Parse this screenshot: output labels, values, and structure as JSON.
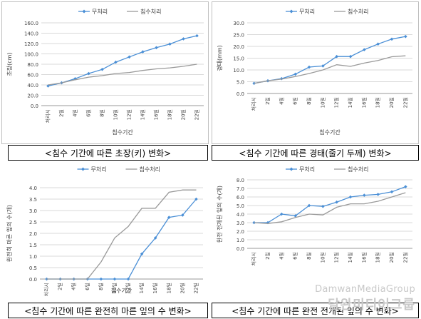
{
  "chart_data": [
    {
      "type": "line",
      "title": "",
      "xlabel": "침수기간",
      "ylabel": "초장(cm)",
      "categories": [
        "처리시",
        "2일",
        "4일",
        "6일",
        "8일",
        "10일",
        "12일",
        "14일",
        "16일",
        "18일",
        "20일",
        "22일"
      ],
      "ylim": [
        0,
        160
      ],
      "yticks": [
        "0.0",
        "20.0",
        "40.0",
        "60.0",
        "80.0",
        "100.0",
        "120.0",
        "140.0",
        "160.0"
      ],
      "grid": true,
      "legend": "top-center",
      "series": [
        {
          "name": "무처리",
          "color": "#4a8fd6",
          "marker": "diamond",
          "values": [
            38,
            44,
            52,
            62,
            70,
            84,
            94,
            104,
            112,
            119,
            129,
            135
          ]
        },
        {
          "name": "침수처리",
          "color": "#9a9a9a",
          "marker": "none",
          "values": [
            40,
            44,
            50,
            55,
            58,
            62,
            64,
            68,
            71,
            73,
            76,
            80
          ]
        }
      ],
      "caption": "<침수 기간에 따른 초장(키) 변화>"
    },
    {
      "type": "line",
      "title": "",
      "xlabel": "침수기간",
      "ylabel": "경태(mm)",
      "categories": [
        "처리시",
        "2일",
        "4일",
        "6일",
        "8일",
        "10일",
        "12일",
        "14일",
        "16일",
        "18일",
        "20일",
        "22일"
      ],
      "ylim": [
        0,
        30
      ],
      "yticks": [
        "0.0",
        "5.0",
        "10.0",
        "15.0",
        "20.0",
        "25.0",
        "30.0"
      ],
      "grid": true,
      "legend": "top-center",
      "series": [
        {
          "name": "무처리",
          "color": "#4a8fd6",
          "marker": "diamond",
          "values": [
            4.3,
            5.4,
            6.3,
            8.2,
            11.2,
            11.7,
            15.7,
            15.7,
            18.6,
            21.0,
            23.1,
            24.2
          ]
        },
        {
          "name": "침수처리",
          "color": "#9a9a9a",
          "marker": "none",
          "values": [
            4.3,
            5.4,
            6.1,
            7.2,
            8.5,
            10.0,
            12.2,
            11.5,
            12.9,
            14.0,
            15.6,
            16.0
          ]
        }
      ],
      "caption": "<침수 기간에 따른 경태(줄기 두께) 변화>"
    },
    {
      "type": "line",
      "title": "",
      "xlabel": "침수기간",
      "ylabel": "완전히 마른 잎의 수(개)",
      "categories": [
        "처리시",
        "2일",
        "4일",
        "6일",
        "8일",
        "10일",
        "12일",
        "14일",
        "16일",
        "18일",
        "20일",
        "22일"
      ],
      "ylim": [
        0,
        4
      ],
      "yticks": [
        "0.0",
        "0.5",
        "1.0",
        "1.5",
        "2.0",
        "2.5",
        "3.0",
        "3.5",
        "4.0"
      ],
      "grid": true,
      "legend": "top-center",
      "series": [
        {
          "name": "무처리",
          "color": "#4a8fd6",
          "marker": "diamond",
          "values": [
            0,
            0,
            0,
            0,
            0,
            0,
            0,
            1.1,
            1.8,
            2.7,
            2.8,
            3.5
          ]
        },
        {
          "name": "침수처리",
          "color": "#9a9a9a",
          "marker": "none",
          "values": [
            0,
            0,
            0,
            0,
            0.75,
            1.8,
            2.3,
            3.1,
            3.1,
            3.8,
            3.9,
            3.9
          ]
        }
      ],
      "caption": "<침수 기간에 따른 완전히 마른 잎의 수 변화>"
    },
    {
      "type": "line",
      "title": "",
      "xlabel": "",
      "ylabel": "완전 전개된 잎의 수(개)",
      "categories": [
        "처리시",
        "2일",
        "4일",
        "6일",
        "8일",
        "10일",
        "12일",
        "14일",
        "16일",
        "18일",
        "20일",
        "22일"
      ],
      "ylim": [
        0,
        8
      ],
      "yticks": [
        "0.0",
        "1.0",
        "2.0",
        "3.0",
        "4.0",
        "5.0",
        "6.0",
        "7.0",
        "8.0"
      ],
      "grid": true,
      "legend": "top-center",
      "series": [
        {
          "name": "무처리",
          "color": "#4a8fd6",
          "marker": "diamond",
          "values": [
            3.0,
            3.0,
            4.0,
            3.8,
            5.0,
            4.9,
            5.4,
            6.0,
            6.2,
            6.3,
            6.6,
            7.2
          ]
        },
        {
          "name": "침수처리",
          "color": "#9a9a9a",
          "marker": "none",
          "values": [
            3.0,
            2.9,
            3.1,
            3.6,
            4.0,
            3.9,
            4.8,
            5.2,
            5.2,
            5.5,
            6.0,
            6.5
          ]
        }
      ],
      "caption": "<침수 기간에 따른 완전 전개된 잎의 수 변화>"
    }
  ],
  "watermark": {
    "line1": "DamwanMediaGroup",
    "line2": "담완미디어그룹"
  }
}
